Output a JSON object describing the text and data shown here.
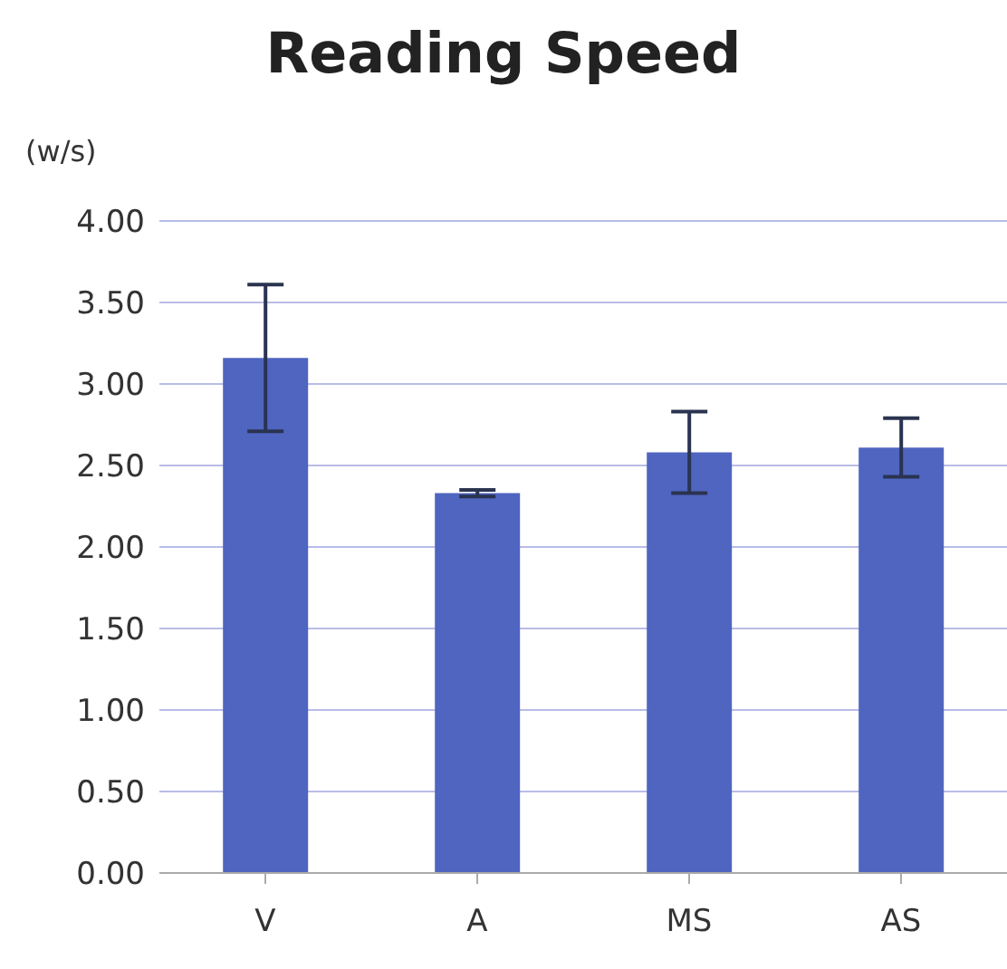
{
  "chart_data": {
    "type": "bar",
    "title": "Reading Speed",
    "ylabel": "(w/s)",
    "categories": [
      "V",
      "A",
      "MS",
      "AS"
    ],
    "values": [
      3.16,
      2.33,
      2.58,
      2.61
    ],
    "errors": [
      0.45,
      0.02,
      0.25,
      0.18
    ],
    "color": "#4f65c0",
    "ylim": [
      0,
      4
    ],
    "yticks": [
      {
        "value": 0,
        "label": "0.00"
      },
      {
        "value": 0.5,
        "label": "0.50"
      },
      {
        "value": 1,
        "label": "1.00"
      },
      {
        "value": 1.5,
        "label": "1.50"
      },
      {
        "value": 2,
        "label": "2.00"
      },
      {
        "value": 2.5,
        "label": "2.50"
      },
      {
        "value": 3,
        "label": "3.00"
      },
      {
        "value": 3.5,
        "label": "3.50"
      },
      {
        "value": 4,
        "label": "4.00"
      }
    ],
    "grid": "y"
  }
}
